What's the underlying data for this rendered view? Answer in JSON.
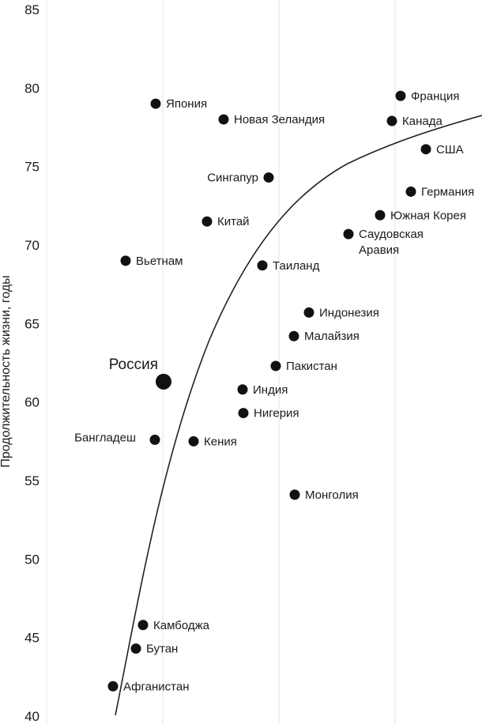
{
  "chart_data": {
    "type": "scatter",
    "title": "",
    "xlabel": "",
    "ylabel": "Продолжительность жизни, годы",
    "ylim": [
      40,
      85
    ],
    "yticks": [
      40,
      45,
      50,
      55,
      60,
      65,
      70,
      75,
      80,
      85
    ],
    "grid": "vertical lines only",
    "point_color": "#111111",
    "curve_color": "#222222",
    "points": [
      {
        "label": "Япония",
        "y": 79.0,
        "marker": "normal"
      },
      {
        "label": "Новая Зеландия",
        "y": 78.0,
        "marker": "normal"
      },
      {
        "label": "Франция",
        "y": 79.5,
        "marker": "normal"
      },
      {
        "label": "Канада",
        "y": 77.9,
        "marker": "normal"
      },
      {
        "label": "США",
        "y": 76.1,
        "marker": "normal"
      },
      {
        "label": "Сингапур",
        "y": 74.3,
        "marker": "normal"
      },
      {
        "label": "Германия",
        "y": 73.4,
        "marker": "normal"
      },
      {
        "label": "Китай",
        "y": 71.5,
        "marker": "normal"
      },
      {
        "label": "Южная Корея",
        "y": 71.9,
        "marker": "normal"
      },
      {
        "label": "Саудовская Аравия",
        "y": 70.7,
        "marker": "normal"
      },
      {
        "label": "Вьетнам",
        "y": 69.0,
        "marker": "normal"
      },
      {
        "label": "Таиланд",
        "y": 68.7,
        "marker": "normal"
      },
      {
        "label": "Индонезия",
        "y": 65.7,
        "marker": "normal"
      },
      {
        "label": "Малайзия",
        "y": 64.2,
        "marker": "normal"
      },
      {
        "label": "Пакистан",
        "y": 62.3,
        "marker": "normal"
      },
      {
        "label": "Россия",
        "y": 61.3,
        "marker": "large"
      },
      {
        "label": "Индия",
        "y": 60.8,
        "marker": "normal"
      },
      {
        "label": "Нигерия",
        "y": 59.3,
        "marker": "normal"
      },
      {
        "label": "Бангладеш",
        "y": 57.6,
        "marker": "normal"
      },
      {
        "label": "Кения",
        "y": 57.5,
        "marker": "normal"
      },
      {
        "label": "Монголия",
        "y": 54.1,
        "marker": "normal"
      },
      {
        "label": "Камбоджа",
        "y": 45.8,
        "marker": "normal"
      },
      {
        "label": "Бутан",
        "y": 44.3,
        "marker": "normal"
      },
      {
        "label": "Афганистан",
        "y": 41.9,
        "marker": "normal"
      }
    ]
  }
}
